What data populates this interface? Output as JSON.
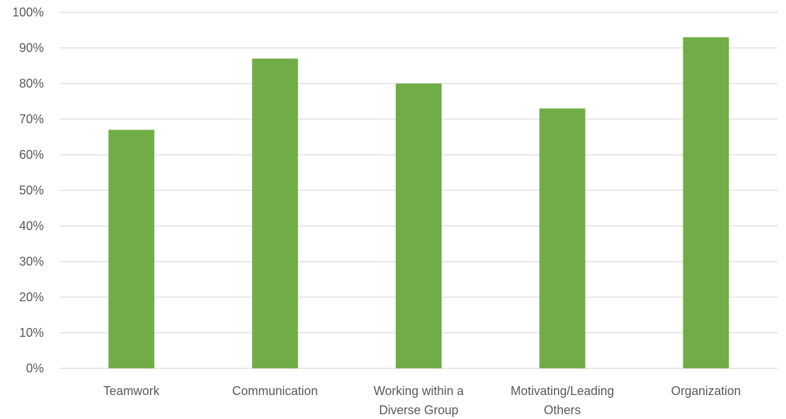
{
  "chart_data": {
    "type": "bar",
    "categories": [
      [
        "Teamwork"
      ],
      [
        "Communication"
      ],
      [
        "Working within a",
        "Diverse Group"
      ],
      [
        "Motivating/Leading",
        "Others"
      ],
      [
        "Organization"
      ]
    ],
    "values": [
      67,
      87,
      80,
      73,
      93
    ],
    "ylim": [
      0,
      100
    ],
    "yticks": [
      0,
      10,
      20,
      30,
      40,
      50,
      60,
      70,
      80,
      90,
      100
    ],
    "ytick_labels": [
      "0%",
      "10%",
      "20%",
      "30%",
      "40%",
      "50%",
      "60%",
      "70%",
      "80%",
      "90%",
      "100%"
    ],
    "title": "",
    "xlabel": "",
    "ylabel": "",
    "grid": true,
    "legend": "none",
    "bar_color": "#70ad47"
  }
}
